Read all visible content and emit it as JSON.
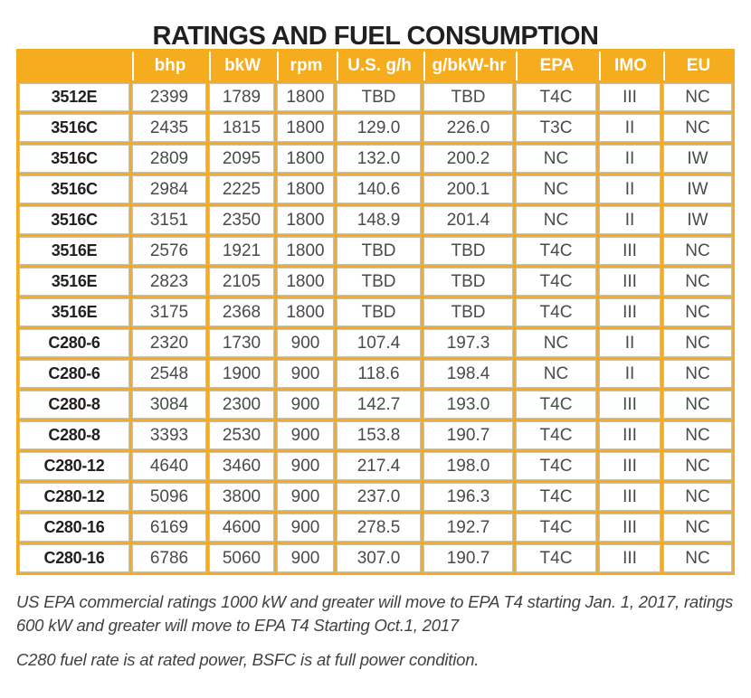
{
  "title": "RATINGS AND FUEL CONSUMPTION",
  "colors": {
    "gold": "#F5AC1E",
    "header_text": "#FFFFFF",
    "cell_text": "#4A4A4C",
    "model_text": "#221F20",
    "title_text": "#221F20",
    "footnote_text": "#414042"
  },
  "table": {
    "columns": [
      "",
      "bhp",
      "bkW",
      "rpm",
      "U.S. g/h",
      "g/bkW-hr",
      "EPA",
      "IMO",
      "EU"
    ],
    "rows": [
      [
        "3512E",
        "2399",
        "1789",
        "1800",
        "TBD",
        "TBD",
        "T4C",
        "III",
        "NC"
      ],
      [
        "3516C",
        "2435",
        "1815",
        "1800",
        "129.0",
        "226.0",
        "T3C",
        "II",
        "NC"
      ],
      [
        "3516C",
        "2809",
        "2095",
        "1800",
        "132.0",
        "200.2",
        "NC",
        "II",
        "IW"
      ],
      [
        "3516C",
        "2984",
        "2225",
        "1800",
        "140.6",
        "200.1",
        "NC",
        "II",
        "IW"
      ],
      [
        "3516C",
        "3151",
        "2350",
        "1800",
        "148.9",
        "201.4",
        "NC",
        "II",
        "IW"
      ],
      [
        "3516E",
        "2576",
        "1921",
        "1800",
        "TBD",
        "TBD",
        "T4C",
        "III",
        "NC"
      ],
      [
        "3516E",
        "2823",
        "2105",
        "1800",
        "TBD",
        "TBD",
        "T4C",
        "III",
        "NC"
      ],
      [
        "3516E",
        "3175",
        "2368",
        "1800",
        "TBD",
        "TBD",
        "T4C",
        "III",
        "NC"
      ],
      [
        "C280-6",
        "2320",
        "1730",
        "900",
        "107.4",
        "197.3",
        "NC",
        "II",
        "NC"
      ],
      [
        "C280-6",
        "2548",
        "1900",
        "900",
        "118.6",
        "198.4",
        "NC",
        "II",
        "NC"
      ],
      [
        "C280-8",
        "3084",
        "2300",
        "900",
        "142.7",
        "193.0",
        "T4C",
        "III",
        "NC"
      ],
      [
        "C280-8",
        "3393",
        "2530",
        "900",
        "153.8",
        "190.7",
        "T4C",
        "III",
        "NC"
      ],
      [
        "C280-12",
        "4640",
        "3460",
        "900",
        "217.4",
        "198.0",
        "T4C",
        "III",
        "NC"
      ],
      [
        "C280-12",
        "5096",
        "3800",
        "900",
        "237.0",
        "196.3",
        "T4C",
        "III",
        "NC"
      ],
      [
        "C280-16",
        "6169",
        "4600",
        "900",
        "278.5",
        "192.7",
        "T4C",
        "III",
        "NC"
      ],
      [
        "C280-16",
        "6786",
        "5060",
        "900",
        "307.0",
        "190.7",
        "T4C",
        "III",
        "NC"
      ]
    ]
  },
  "footnotes": [
    {
      "lines": [
        "US EPA commercial ratings 1000 kW and greater will move to EPA T4 starting Jan. 1, 2017, ratings",
        "600 kW and greater will move to EPA T4 Starting Oct.1, 2017"
      ]
    },
    {
      "lines": [
        "C280 fuel rate is at rated power, BSFC is at full power condition."
      ]
    }
  ]
}
